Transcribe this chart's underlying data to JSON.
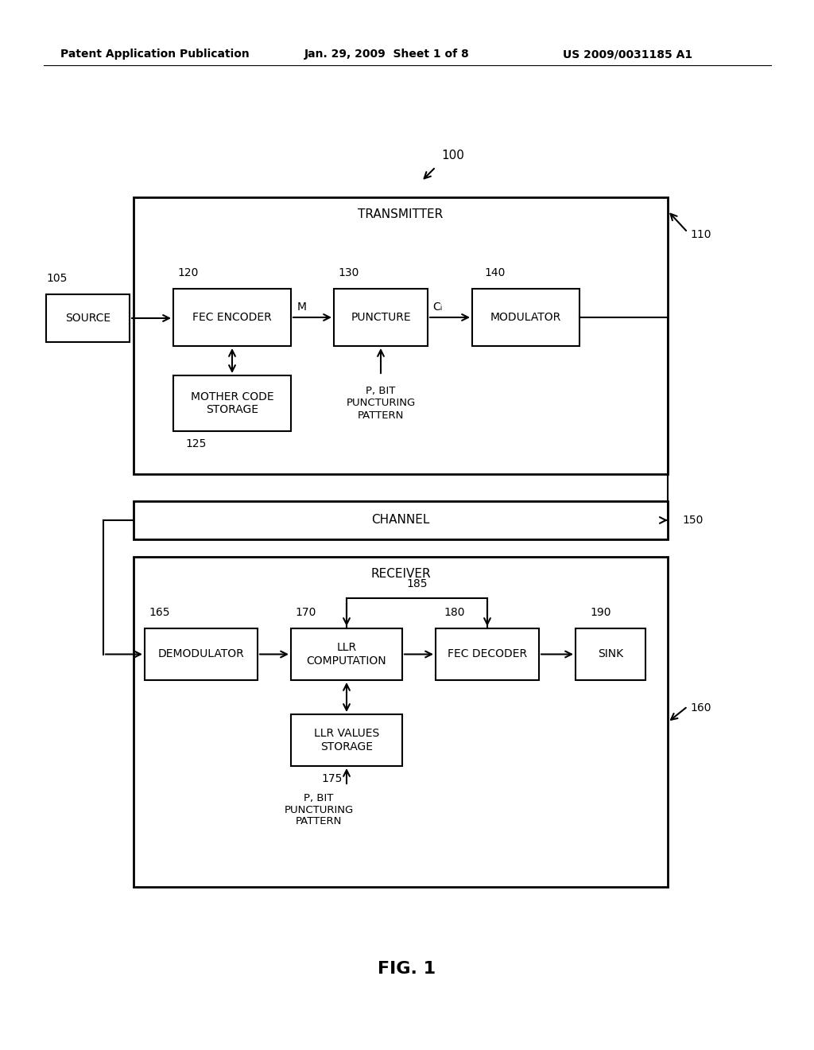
{
  "bg_color": "#ffffff",
  "header_left": "Patent Application Publication",
  "header_center": "Jan. 29, 2009  Sheet 1 of 8",
  "header_right": "US 2009/0031185 A1",
  "fig_label": "FIG. 1",
  "diagram_label": "100",
  "transmitter_label": "TRANSMITTER",
  "transmitter_num": "110",
  "channel_label": "CHANNEL",
  "channel_num": "150",
  "receiver_label": "RECEIVER",
  "receiver_num": "160",
  "source_label": "SOURCE",
  "source_num": "105",
  "fec_enc_label": "FEC ENCODER",
  "fec_enc_num": "120",
  "puncture_label": "PUNCTURE",
  "puncture_num": "130",
  "modulator_label": "MODULATOR",
  "modulator_num": "140",
  "mother_code_label": "MOTHER CODE\nSTORAGE",
  "mother_code_num": "125",
  "pbit_tx_label": "P, BIT\nPUNCTURING\nPATTERN",
  "demodulator_label": "DEMODULATOR",
  "demodulator_num": "165",
  "llr_comp_label": "LLR\nCOMPUTATION",
  "llr_comp_num": "170",
  "fec_dec_label": "FEC DECODER",
  "fec_dec_num": "180",
  "sink_label": "SINK",
  "sink_num": "190",
  "llr_val_label": "LLR VALUES\nSTORAGE",
  "llr_val_num": "175",
  "pbit_rx_label": "P, BIT\nPUNCTURING\nPATTERN",
  "label_185": "185",
  "m_label": "M",
  "ci_label": "Cᵢ"
}
